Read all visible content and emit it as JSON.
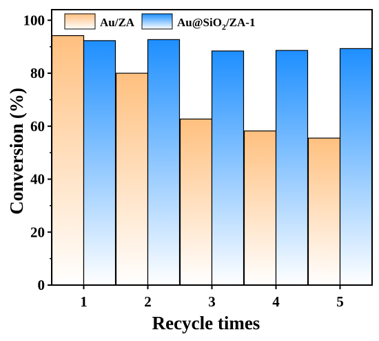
{
  "chart_data": {
    "type": "bar",
    "title": "",
    "xlabel": "Recycle times",
    "ylabel": "Conversion (%)",
    "categories": [
      "1",
      "2",
      "3",
      "4",
      "5"
    ],
    "ylim": [
      0,
      104
    ],
    "yticks": [
      0,
      20,
      40,
      60,
      80,
      100
    ],
    "grid": false,
    "legend_position": "top-left",
    "series": [
      {
        "name": "Au/ZA",
        "values": [
          94.2,
          80.0,
          62.7,
          58.2,
          55.5
        ],
        "color_top": "#ffc07f",
        "color_bottom": "#ffffff"
      },
      {
        "name_main": "Au@SiO",
        "name_sub": "2",
        "name_tail": "/ZA-1",
        "values": [
          92.3,
          92.7,
          88.4,
          88.6,
          89.3
        ],
        "color_top": "#1e8fff",
        "color_bottom": "#ffffff"
      }
    ]
  }
}
